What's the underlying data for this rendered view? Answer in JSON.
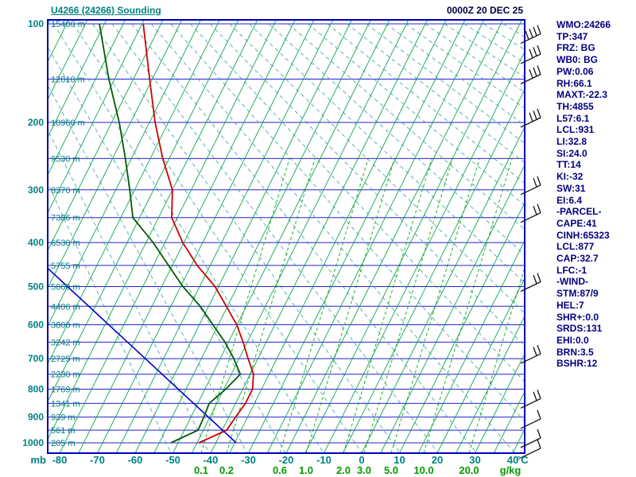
{
  "header": {
    "title": "U4266 (24266) Sounding",
    "datetime": "0000Z 20 DEC 25"
  },
  "stats": {
    "lines": [
      "WMO:24266",
      "TP:347",
      "FRZ: BG",
      "WB0: BG",
      "PW:0.06",
      "RH:66.1",
      "MAXT:-22.3",
      "TH:4855",
      "L57:6.1",
      "LCL:931",
      "LI:32.8",
      "SI:24.0",
      "TT:14",
      "KI:-32",
      "SW:31",
      "EI:6.4",
      "-PARCEL-",
      "CAPE:41",
      "CINH:65323",
      "LCL:877",
      "CAP:32.7",
      "LFC:-1",
      "-WIND-",
      "STM:87/9",
      "HEL:7",
      "SHR+:0.0",
      "SRDS:131",
      "EHI:0.0",
      "BRN:3.5",
      "BSHR:12"
    ]
  },
  "height_labels": [
    {
      "p": 100,
      "text": "15400 m"
    },
    {
      "p": 150,
      "text": "12810 m"
    },
    {
      "p": 200,
      "text": "10960 m"
    },
    {
      "p": 250,
      "text": "9530 m"
    },
    {
      "p": 300,
      "text": "8370 m"
    },
    {
      "p": 350,
      "text": "7386 m"
    },
    {
      "p": 400,
      "text": "6530 m"
    },
    {
      "p": 450,
      "text": "5755 m"
    },
    {
      "p": 500,
      "text": "5060 m"
    },
    {
      "p": 550,
      "text": "4406 m"
    },
    {
      "p": 600,
      "text": "3800 m"
    },
    {
      "p": 650,
      "text": "3242 m"
    },
    {
      "p": 700,
      "text": "2725 m"
    },
    {
      "p": 750,
      "text": "2230 m"
    },
    {
      "p": 800,
      "text": "1769 m"
    },
    {
      "p": 850,
      "text": "1341 m"
    },
    {
      "p": 900,
      "text": "939 m"
    },
    {
      "p": 950,
      "text": "561 m"
    },
    {
      "p": 1000,
      "text": "205 m"
    }
  ],
  "chart_data": {
    "type": "line",
    "title": "U4266 (24266) Sounding",
    "subtitle": "0000Z 20 DEC 25",
    "note": "Skew-T style sounding; vertical scale p^0.286; temperatures referenced to the skewed isotherm grid",
    "x_axis": {
      "label": "°C",
      "ticks": [
        -80,
        -70,
        -60,
        -50,
        -40,
        -30,
        -20,
        -10,
        0,
        10,
        20,
        30,
        40
      ]
    },
    "y_axis": {
      "label": "mb",
      "ticks": [
        100,
        200,
        300,
        400,
        500,
        600,
        700,
        800,
        900,
        1000
      ],
      "range": [
        100,
        1050
      ],
      "scale": "p^0.286"
    },
    "mixing_ratio_axis": {
      "label": "g/kg",
      "ticks": [
        "0.1",
        "0.2",
        "0.6",
        "1.0",
        "2.0",
        "3.0",
        "5.0",
        "10.0",
        "20.0"
      ]
    },
    "series": [
      {
        "name": "temperature",
        "color": "#cc0000",
        "points": [
          [
            100,
            -114.7
          ],
          [
            150,
            -105.7
          ],
          [
            200,
            -98.5
          ],
          [
            250,
            -91.7
          ],
          [
            300,
            -85.0
          ],
          [
            350,
            -81.5
          ],
          [
            400,
            -75.3
          ],
          [
            450,
            -68.4
          ],
          [
            500,
            -60.9
          ],
          [
            550,
            -55.3
          ],
          [
            600,
            -50.1
          ],
          [
            650,
            -46.1
          ],
          [
            700,
            -42.6
          ],
          [
            750,
            -39.1
          ],
          [
            800,
            -37.4
          ],
          [
            850,
            -37.4
          ],
          [
            900,
            -38.2
          ],
          [
            950,
            -38.8
          ],
          [
            1000,
            -44.5
          ]
        ]
      },
      {
        "name": "dewpoint",
        "color": "#005a00",
        "points": [
          [
            100,
            -126.3
          ],
          [
            150,
            -116.5
          ],
          [
            200,
            -108.0
          ],
          [
            250,
            -101.6
          ],
          [
            300,
            -96.3
          ],
          [
            350,
            -91.8
          ],
          [
            400,
            -83.1
          ],
          [
            450,
            -76.0
          ],
          [
            500,
            -69.4
          ],
          [
            550,
            -62.2
          ],
          [
            600,
            -56.4
          ],
          [
            650,
            -50.9
          ],
          [
            700,
            -46.4
          ],
          [
            750,
            -42.6
          ],
          [
            800,
            -44.5
          ],
          [
            850,
            -47.0
          ],
          [
            900,
            -46.6
          ],
          [
            950,
            -46.4
          ],
          [
            1000,
            -51.9
          ]
        ]
      },
      {
        "name": "parcel",
        "color": "#0000cc",
        "points": [
          [
            456,
            -107.7
          ],
          [
            1000,
            -34.6
          ]
        ]
      }
    ],
    "wind_barbs": [
      {
        "p": 112,
        "ticks": 4
      },
      {
        "p": 130,
        "ticks": 3
      },
      {
        "p": 150,
        "ticks": 3
      },
      {
        "p": 200,
        "ticks": 3
      },
      {
        "p": 300,
        "ticks": 2
      },
      {
        "p": 350,
        "ticks": 2
      },
      {
        "p": 500,
        "ticks": 2
      },
      {
        "p": 700,
        "ticks": 2
      },
      {
        "p": 850,
        "ticks": 2
      },
      {
        "p": 925,
        "ticks": 1
      },
      {
        "p": 1000,
        "ticks": 1
      },
      {
        "p": 1042,
        "ticks": 1
      }
    ]
  },
  "colors": {
    "frame": "#0000bb",
    "pressure_line": "#2323cc",
    "isotherm": "#00a040",
    "adiabat": "#2e9e9e",
    "mixing": "#00a300",
    "barb": "#111111"
  }
}
